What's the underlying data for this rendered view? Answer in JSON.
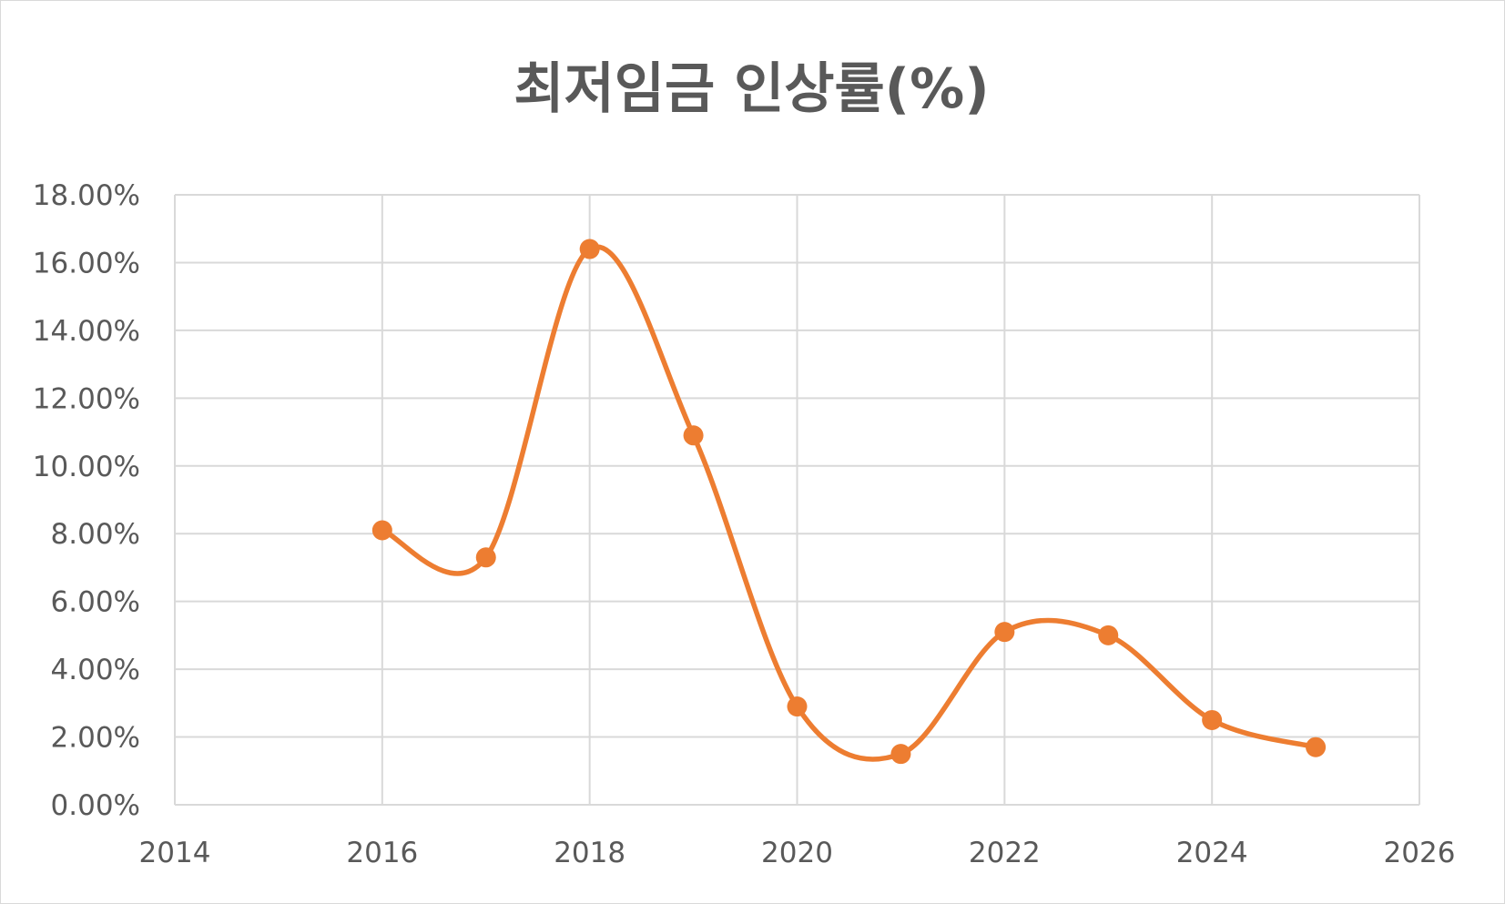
{
  "chart_data": {
    "type": "scatter",
    "subtype": "smooth-line-with-markers",
    "title": "최저임금 인상률(%)",
    "xlabel": "",
    "ylabel": "",
    "xlim": [
      2014,
      2026
    ],
    "ylim": [
      0,
      0.18
    ],
    "x_ticks": [
      2014,
      2016,
      2018,
      2020,
      2022,
      2024,
      2026
    ],
    "x_tick_labels": [
      "2014",
      "2016",
      "2018",
      "2020",
      "2022",
      "2024",
      "2026"
    ],
    "y_ticks": [
      0,
      0.02,
      0.04,
      0.06,
      0.08,
      0.1,
      0.12,
      0.14,
      0.16,
      0.18
    ],
    "y_tick_labels": [
      "0.00%",
      "2.00%",
      "4.00%",
      "6.00%",
      "8.00%",
      "10.00%",
      "12.00%",
      "14.00%",
      "16.00%",
      "18.00%"
    ],
    "grid": true,
    "legend": "none",
    "series": [
      {
        "x": [
          2016,
          2017,
          2018,
          2019,
          2020,
          2021,
          2022,
          2023,
          2024,
          2025
        ],
        "y": [
          0.081,
          0.073,
          0.164,
          0.109,
          0.029,
          0.015,
          0.051,
          0.05,
          0.025,
          0.017
        ],
        "color": "#ED7D31"
      }
    ]
  },
  "colors": {
    "series": "#ED7D31",
    "grid": "#d9d9d9",
    "text": "#595959"
  }
}
